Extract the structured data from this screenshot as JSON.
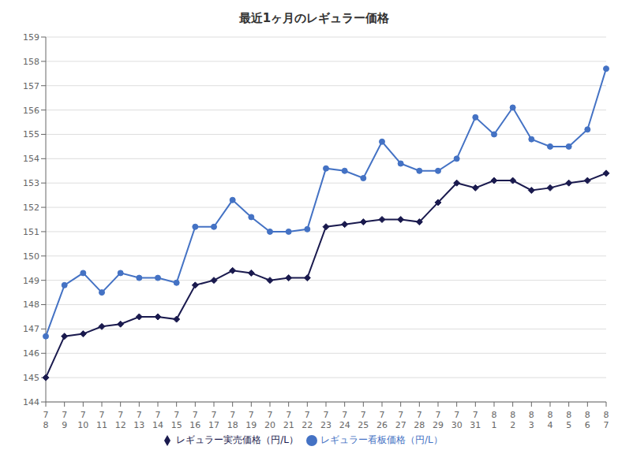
{
  "chart_data": {
    "type": "line",
    "title": "最近1ヶ月のレギュラー価格",
    "categories": [
      "7\n8",
      "7\n9",
      "7\n10",
      "7\n11",
      "7\n12",
      "7\n13",
      "7\n14",
      "7\n15",
      "7\n16",
      "7\n17",
      "7\n18",
      "7\n19",
      "7\n20",
      "7\n21",
      "7\n22",
      "7\n23",
      "7\n24",
      "7\n25",
      "7\n26",
      "7\n27",
      "7\n28",
      "7\n29",
      "7\n30",
      "7\n31",
      "8\n1",
      "8\n2",
      "8\n3",
      "8\n4",
      "8\n5",
      "8\n6",
      "8\n7"
    ],
    "series": [
      {
        "name": "レギュラー看板価格（円/L）",
        "color": "#4472C4",
        "marker": "circle",
        "values": [
          146.7,
          148.8,
          149.3,
          148.5,
          149.3,
          149.1,
          149.1,
          148.9,
          151.2,
          151.2,
          152.3,
          151.6,
          151.0,
          151.0,
          151.1,
          153.6,
          153.5,
          153.2,
          154.7,
          153.8,
          153.5,
          153.5,
          154.0,
          155.7,
          155.0,
          156.1,
          154.8,
          154.5,
          154.5,
          155.2,
          157.7
        ]
      },
      {
        "name": "レギュラー実売価格（円/L）",
        "color": "#1a1a4e",
        "marker": "diamond",
        "values": [
          145.0,
          146.7,
          146.8,
          147.1,
          147.2,
          147.5,
          147.5,
          147.4,
          148.8,
          149.0,
          149.4,
          149.3,
          149.0,
          149.1,
          149.1,
          151.2,
          151.3,
          151.4,
          151.5,
          151.5,
          151.4,
          152.2,
          153.0,
          152.8,
          153.1,
          153.1,
          152.7,
          152.8,
          153.0,
          153.1,
          153.4
        ]
      }
    ],
    "ylim": [
      144,
      159
    ],
    "yticks": [
      144,
      145,
      146,
      147,
      148,
      149,
      150,
      151,
      152,
      153,
      154,
      155,
      156,
      157,
      158,
      159
    ],
    "grid": true,
    "legend": "bottom"
  }
}
